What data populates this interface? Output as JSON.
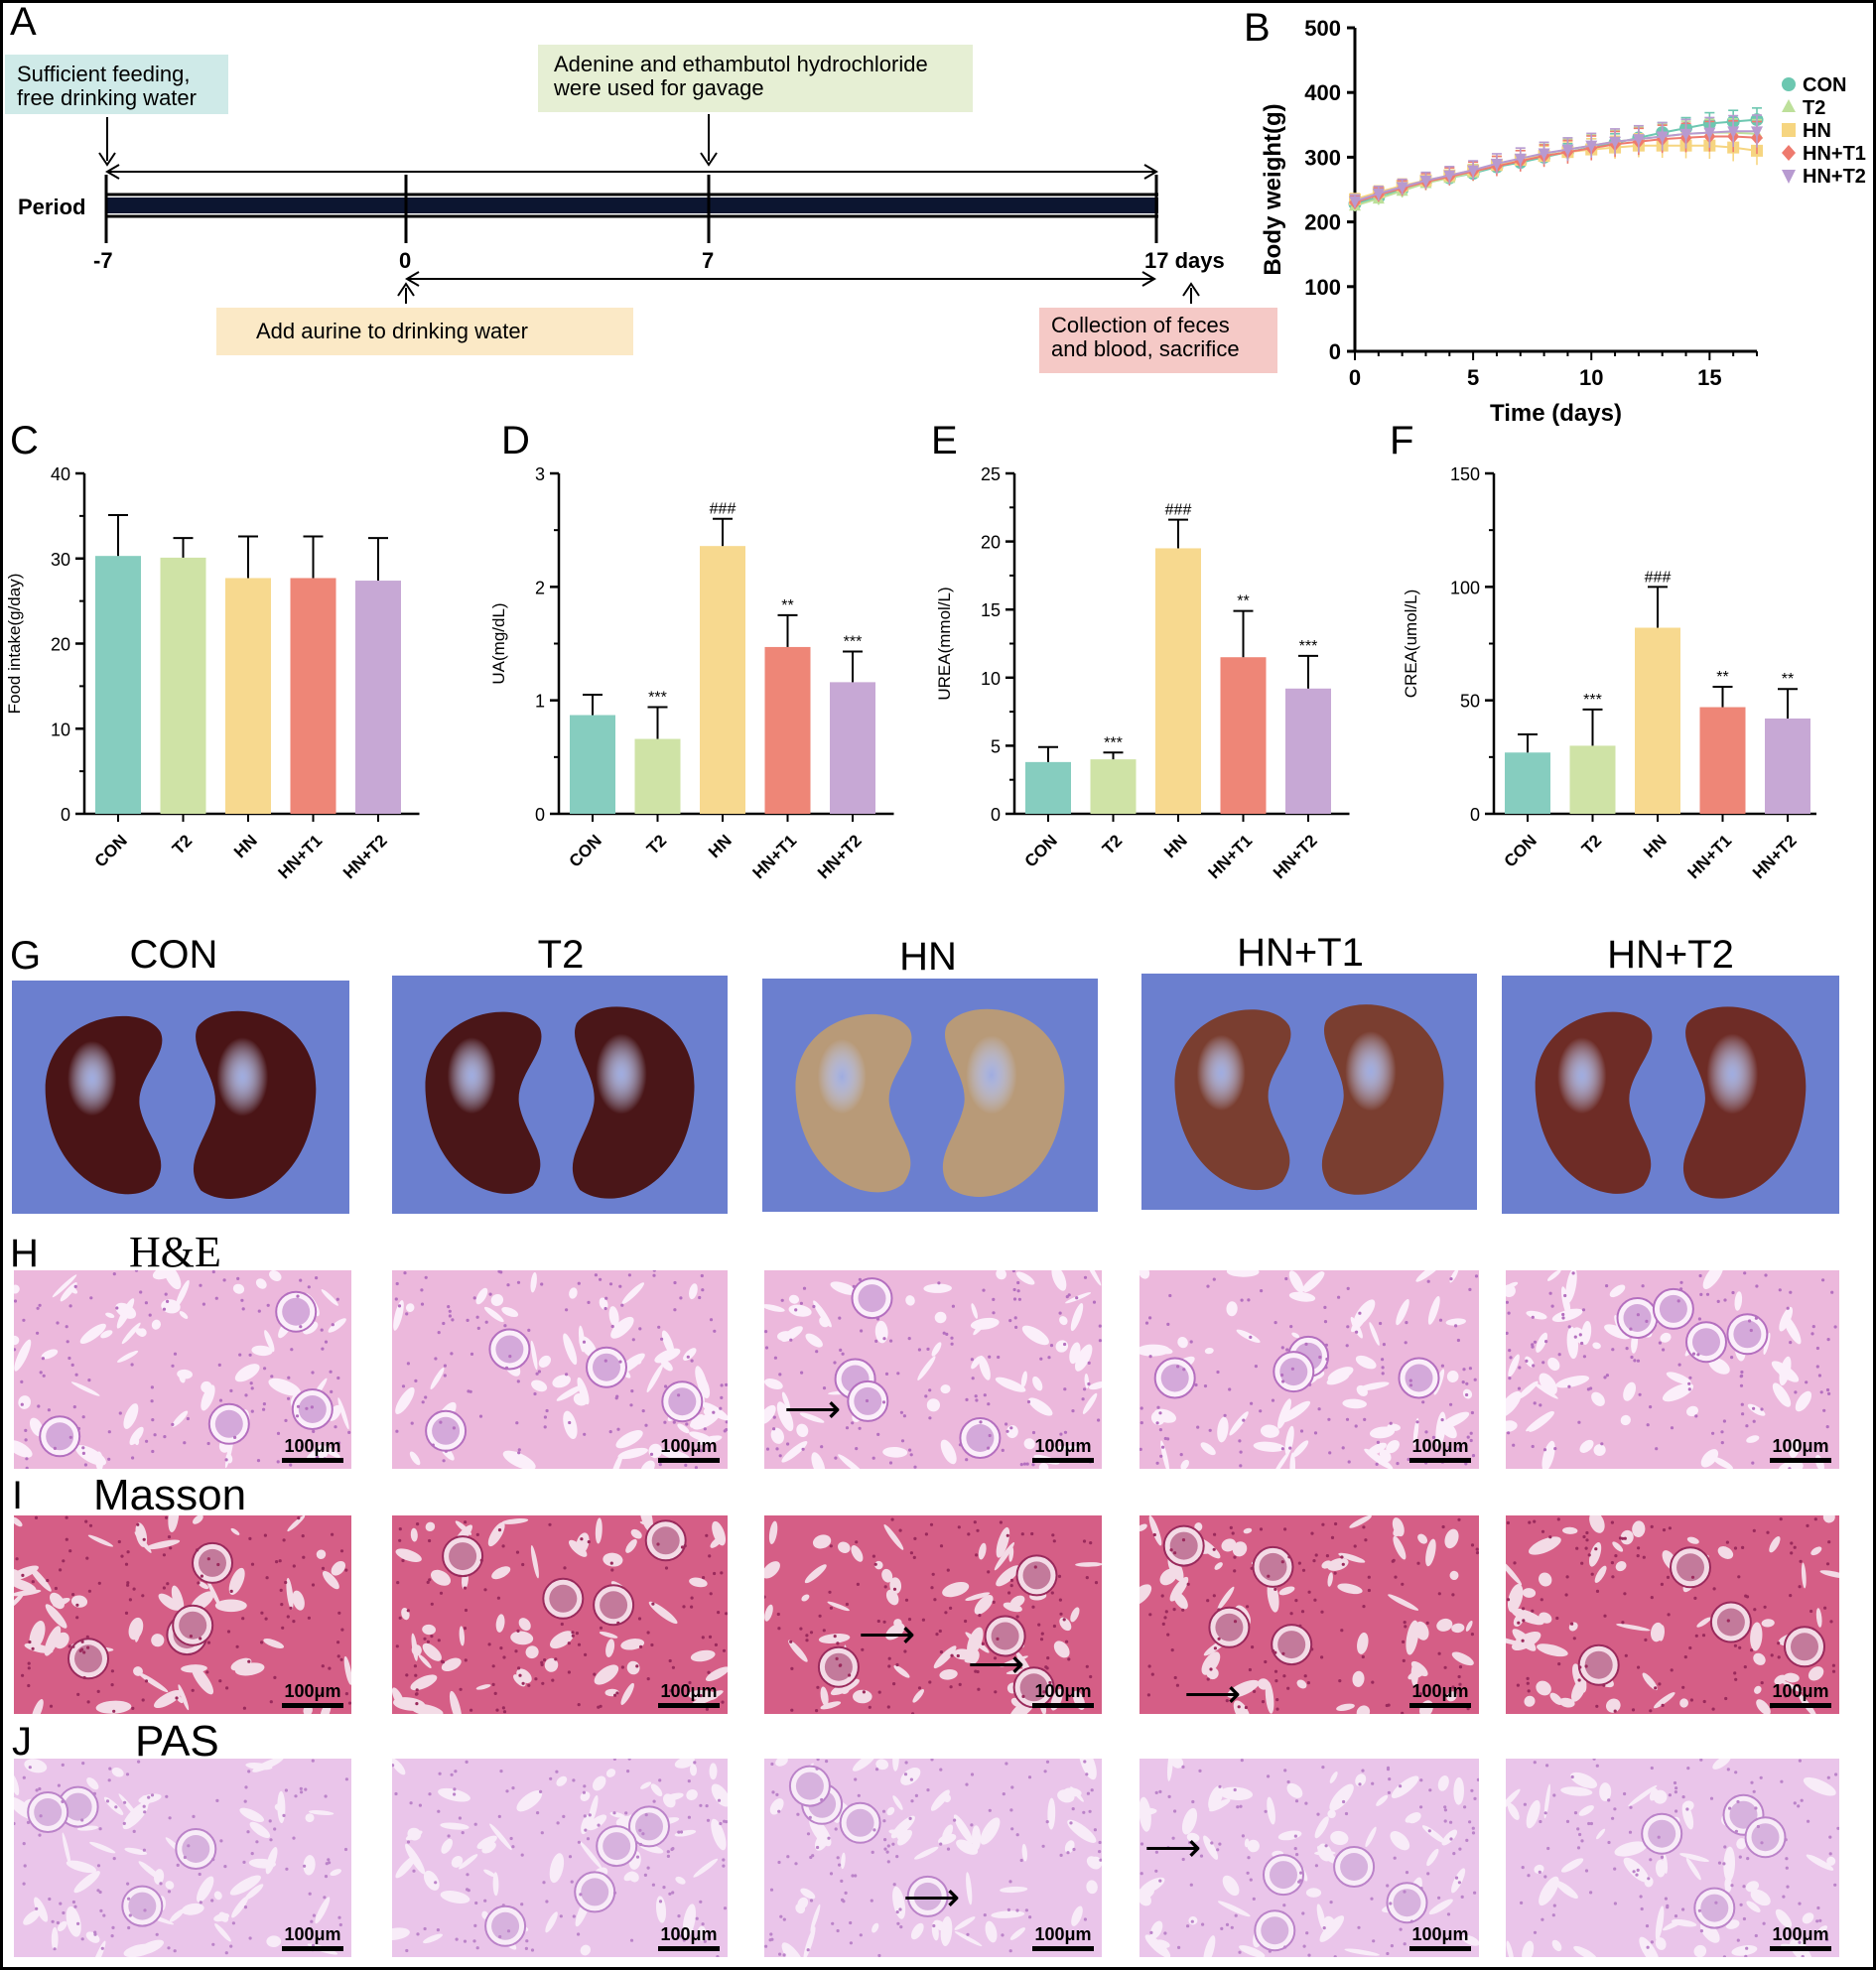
{
  "panel_letters": {
    "A": "A",
    "B": "B",
    "C": "C",
    "D": "D",
    "E": "E",
    "F": "F",
    "G": "G",
    "H": "H",
    "I": "I",
    "J": "J"
  },
  "timeline": {
    "box1": "Sufficient feeding, free drinking water",
    "box2": "Adenine and ethambutol hydrochloride were used for gavage",
    "box3": "Add aurine to drinking water",
    "box4": "Collection of feces and blood, sacrifice",
    "period_label": "Period",
    "ticks": [
      "-7",
      "0",
      "7",
      "17 days"
    ],
    "colors": {
      "box1": "#cfeae8",
      "box2": "#e6efd4",
      "box3": "#fbe9c6",
      "box4": "#f5c9c6"
    }
  },
  "colors": {
    "CON": "#86cdbf",
    "T2": "#cfe3a6",
    "HN": "#f7d98f",
    "HN+T1": "#ee8677",
    "HN+T2": "#c7a8d5"
  },
  "chart_data": [
    {
      "id": "B",
      "type": "line",
      "xlabel": "Time (days)",
      "ylabel": "Body weight(g)",
      "xlim": [
        0,
        17
      ],
      "ylim": [
        0,
        500
      ],
      "xticks": [
        "0",
        "5",
        "10",
        "15"
      ],
      "yticks": [
        "0",
        "100",
        "200",
        "300",
        "400",
        "500"
      ],
      "legend_position": "right",
      "x": [
        0,
        1,
        2,
        3,
        4,
        5,
        6,
        7,
        8,
        9,
        10,
        11,
        12,
        13,
        14,
        15,
        16,
        17
      ],
      "series": [
        {
          "name": "CON",
          "values": [
            228,
            238,
            250,
            262,
            268,
            275,
            285,
            292,
            300,
            308,
            315,
            322,
            330,
            338,
            345,
            352,
            355,
            358
          ],
          "err": 18
        },
        {
          "name": "T2",
          "values": [
            225,
            236,
            248,
            260,
            268,
            276,
            288,
            296,
            305,
            312,
            318,
            324,
            328,
            332,
            336,
            338,
            338,
            336
          ],
          "err": 22
        },
        {
          "name": "HN",
          "values": [
            235,
            246,
            256,
            264,
            272,
            280,
            288,
            296,
            302,
            308,
            312,
            315,
            318,
            318,
            318,
            318,
            315,
            310
          ],
          "err": 22
        },
        {
          "name": "HN+T1",
          "values": [
            230,
            242,
            252,
            262,
            270,
            278,
            286,
            294,
            302,
            308,
            314,
            320,
            324,
            328,
            330,
            332,
            332,
            330
          ],
          "err": 25
        },
        {
          "name": "HN+T2",
          "values": [
            232,
            244,
            254,
            264,
            272,
            280,
            290,
            298,
            306,
            312,
            318,
            324,
            328,
            332,
            336,
            338,
            340,
            340
          ],
          "err": 25
        }
      ]
    },
    {
      "id": "C",
      "type": "bar",
      "ylabel": "Food intake(g/day)",
      "ylim": [
        0,
        40
      ],
      "yticks": [
        "0",
        "10",
        "20",
        "30",
        "40"
      ],
      "categories": [
        "CON",
        "T2",
        "HN",
        "HN+T1",
        "HN+T2"
      ],
      "values": [
        30.3,
        30.1,
        27.7,
        27.7,
        27.4
      ],
      "errors": [
        4.8,
        2.3,
        4.9,
        4.9,
        5.0
      ],
      "annotations": [
        "",
        "",
        "",
        "",
        ""
      ]
    },
    {
      "id": "D",
      "type": "bar",
      "ylabel": "UA(mg/dL)",
      "ylim": [
        0,
        3
      ],
      "yticks": [
        "0",
        "1",
        "2",
        "3"
      ],
      "categories": [
        "CON",
        "T2",
        "HN",
        "HN+T1",
        "HN+T2"
      ],
      "values": [
        0.87,
        0.66,
        2.36,
        1.47,
        1.16
      ],
      "errors": [
        0.18,
        0.28,
        0.24,
        0.28,
        0.27
      ],
      "annotations": [
        "",
        "***",
        "###",
        "**",
        "***"
      ]
    },
    {
      "id": "E",
      "type": "bar",
      "ylabel": "UREA(mmol/L)",
      "ylim": [
        0,
        25
      ],
      "yticks": [
        "0",
        "5",
        "10",
        "15",
        "20",
        "25"
      ],
      "categories": [
        "CON",
        "T2",
        "HN",
        "HN+T1",
        "HN+T2"
      ],
      "values": [
        3.8,
        4.0,
        19.5,
        11.5,
        9.2
      ],
      "errors": [
        1.1,
        0.5,
        2.1,
        3.4,
        2.4
      ],
      "annotations": [
        "",
        "***",
        "###",
        "**",
        "***"
      ]
    },
    {
      "id": "F",
      "type": "bar",
      "ylabel": "CREA(umol/L)",
      "ylim": [
        0,
        150
      ],
      "yticks": [
        "0",
        "50",
        "100",
        "150"
      ],
      "categories": [
        "CON",
        "T2",
        "HN",
        "HN+T1",
        "HN+T2"
      ],
      "values": [
        27,
        30,
        82,
        47,
        42
      ],
      "errors": [
        8,
        16,
        18,
        9,
        13
      ],
      "annotations": [
        "",
        "***",
        "###",
        "**",
        "**"
      ]
    }
  ],
  "photos": {
    "group_titles": [
      "CON",
      "T2",
      "HN",
      "HN+T1",
      "HN+T2"
    ],
    "kidney_colors": [
      "#4a1416",
      "#4a1618",
      "#b89a78",
      "#7a3e30",
      "#6e2c26"
    ],
    "stains": {
      "he": "H&E",
      "masson": "Masson",
      "pas": "PAS"
    },
    "scale_label": "100μm",
    "arrow_glyph": "⟶"
  }
}
